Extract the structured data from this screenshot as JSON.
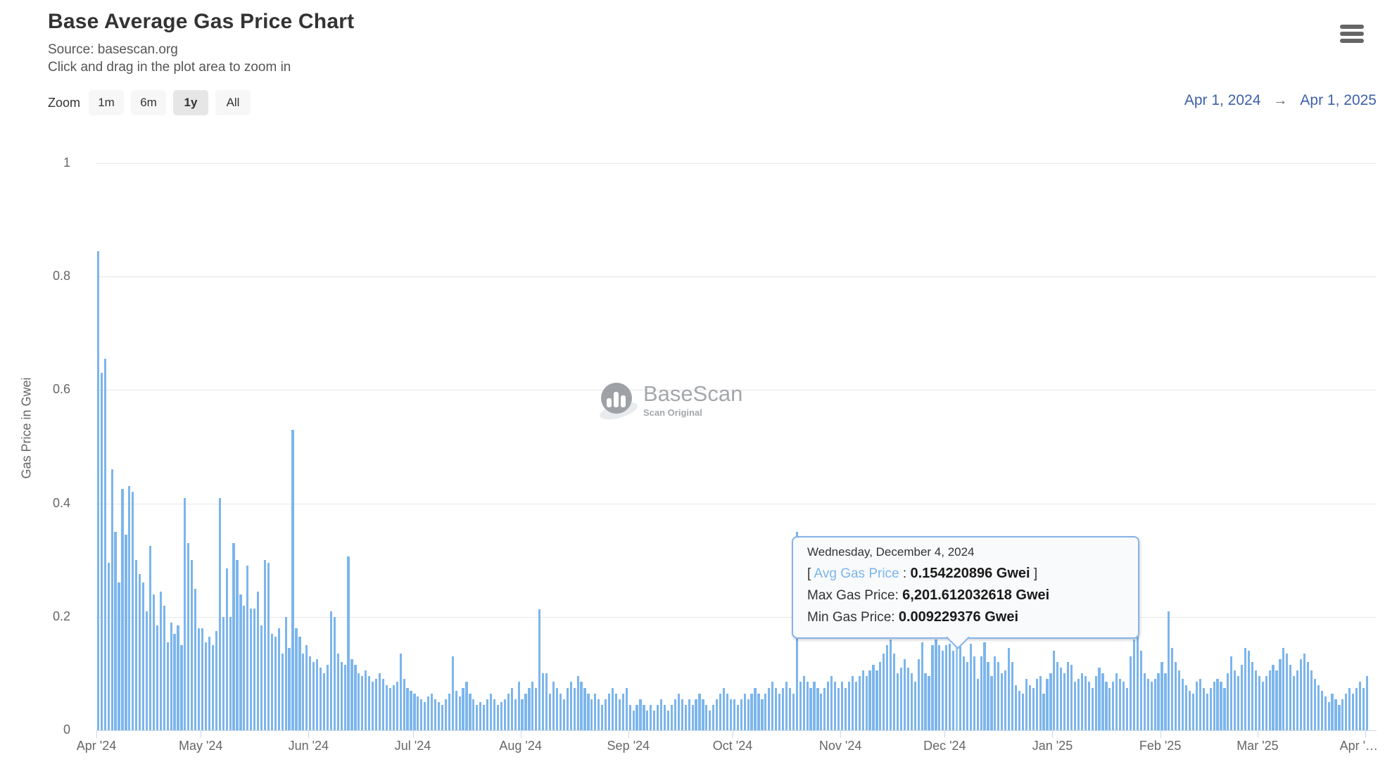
{
  "header": {
    "title": "Base Average Gas Price Chart",
    "source": "Source: basescan.org",
    "hint": "Click and drag in the plot area to zoom in"
  },
  "range_selector": {
    "zoom_label": "Zoom",
    "buttons": [
      {
        "label": "1m",
        "selected": false
      },
      {
        "label": "6m",
        "selected": false
      },
      {
        "label": "1y",
        "selected": true
      },
      {
        "label": "All",
        "selected": false
      }
    ],
    "from_date": "Apr 1, 2024",
    "arrow": "→",
    "to_date": "Apr 1, 2025"
  },
  "watermark": {
    "brand": "BaseScan",
    "tagline": "Scan Original"
  },
  "tooltip": {
    "date": "Wednesday, December 4, 2024",
    "bracket_open": "[ ",
    "avg_label": "Avg Gas Price",
    "separator": " : ",
    "avg_value": "0.154220896 Gwei",
    "bracket_close": " ]",
    "max_label": "Max Gas Price: ",
    "max_value": "6,201.612032618 Gwei",
    "min_label": "Min Gas Price: ",
    "min_value": "0.009229376 Gwei"
  },
  "chart_data": {
    "type": "bar",
    "title": "Base Average Gas Price Chart",
    "ylabel": "Gas Price in Gwei",
    "xlabel": "",
    "ylim": [
      0,
      1
    ],
    "yticks": [
      0,
      0.2,
      0.4,
      0.6,
      0.8,
      1
    ],
    "grid": true,
    "legend": false,
    "x_range": [
      "2024-04-01",
      "2025-04-01"
    ],
    "xticklabels": [
      "Apr '24",
      "May '24",
      "Jun '24",
      "Jul '24",
      "Aug '24",
      "Sep '24",
      "Oct '24",
      "Nov '24",
      "Dec '24",
      "Jan '25",
      "Feb '25",
      "Mar '25",
      "Apr '…"
    ],
    "month_tick_days": [
      0,
      30,
      61,
      91,
      122,
      153,
      183,
      214,
      244,
      275,
      306,
      334,
      365
    ],
    "series_name": "Avg Gas Price (Gwei)",
    "highlight": {
      "index": 247,
      "date": "2024-12-04",
      "avg_gwei": 0.154220896,
      "max_gwei": 6201.612032618,
      "min_gwei": 0.009229376
    },
    "values_by_month": [
      {
        "month": "Apr 2024",
        "values": [
          0.845,
          0.63,
          0.655,
          0.295,
          0.46,
          0.35,
          0.26,
          0.425,
          0.345,
          0.43,
          0.42,
          0.3,
          0.275,
          0.26,
          0.21,
          0.325,
          0.24,
          0.185,
          0.245,
          0.22,
          0.155,
          0.19,
          0.17,
          0.185,
          0.15,
          0.41,
          0.33,
          0.3,
          0.25,
          0.18
        ]
      },
      {
        "month": "May 2024",
        "values": [
          0.18,
          0.155,
          0.165,
          0.15,
          0.175,
          0.41,
          0.2,
          0.285,
          0.2,
          0.33,
          0.3,
          0.24,
          0.22,
          0.29,
          0.215,
          0.215,
          0.245,
          0.185,
          0.3,
          0.295,
          0.17,
          0.165,
          0.18,
          0.135,
          0.2,
          0.145,
          0.53,
          0.18,
          0.165,
          0.135,
          0.15
        ]
      },
      {
        "month": "Jun 2024",
        "values": [
          0.13,
          0.12,
          0.125,
          0.11,
          0.1,
          0.115,
          0.21,
          0.2,
          0.135,
          0.12,
          0.115,
          0.307,
          0.125,
          0.115,
          0.1,
          0.095,
          0.105,
          0.095,
          0.085,
          0.09,
          0.1,
          0.09,
          0.08,
          0.075,
          0.08,
          0.085,
          0.135,
          0.09,
          0.075,
          0.07
        ]
      },
      {
        "month": "Jul 2024",
        "values": [
          0.065,
          0.06,
          0.055,
          0.05,
          0.06,
          0.065,
          0.055,
          0.05,
          0.045,
          0.055,
          0.065,
          0.13,
          0.07,
          0.06,
          0.075,
          0.085,
          0.065,
          0.055,
          0.045,
          0.05,
          0.045,
          0.055,
          0.065,
          0.055,
          0.045,
          0.05,
          0.055,
          0.065,
          0.075,
          0.055,
          0.085
        ]
      },
      {
        "month": "Aug 2024",
        "values": [
          0.055,
          0.065,
          0.075,
          0.085,
          0.075,
          0.214,
          0.1,
          0.1,
          0.065,
          0.085,
          0.075,
          0.065,
          0.055,
          0.075,
          0.085,
          0.075,
          0.095,
          0.085,
          0.075,
          0.065,
          0.055,
          0.065,
          0.055,
          0.045,
          0.055,
          0.065,
          0.075,
          0.065,
          0.055,
          0.065,
          0.075
        ]
      },
      {
        "month": "Sep 2024",
        "values": [
          0.045,
          0.035,
          0.045,
          0.055,
          0.045,
          0.035,
          0.045,
          0.035,
          0.045,
          0.055,
          0.045,
          0.035,
          0.045,
          0.055,
          0.065,
          0.055,
          0.045,
          0.055,
          0.045,
          0.055,
          0.065,
          0.055,
          0.045,
          0.035,
          0.045,
          0.055,
          0.065,
          0.075,
          0.065,
          0.055
        ]
      },
      {
        "month": "Oct 2024",
        "values": [
          0.055,
          0.045,
          0.055,
          0.065,
          0.055,
          0.065,
          0.075,
          0.065,
          0.055,
          0.065,
          0.075,
          0.085,
          0.075,
          0.065,
          0.075,
          0.085,
          0.075,
          0.065,
          0.35,
          0.085,
          0.095,
          0.085,
          0.075,
          0.085,
          0.075,
          0.065,
          0.075,
          0.085,
          0.095,
          0.085,
          0.075
        ]
      },
      {
        "month": "Nov 2024",
        "values": [
          0.085,
          0.075,
          0.085,
          0.095,
          0.085,
          0.095,
          0.105,
          0.095,
          0.105,
          0.115,
          0.105,
          0.12,
          0.135,
          0.15,
          0.16,
          0.135,
          0.1,
          0.11,
          0.125,
          0.11,
          0.1,
          0.085,
          0.125,
          0.155,
          0.1,
          0.095,
          0.15,
          0.16,
          0.15,
          0.14
        ]
      },
      {
        "month": "Dec 2024",
        "values": [
          0.15,
          0.152,
          0.14,
          0.154220896,
          0.148,
          0.13,
          0.12,
          0.152,
          0.13,
          0.09,
          0.13,
          0.155,
          0.12,
          0.095,
          0.13,
          0.12,
          0.1,
          0.105,
          0.145,
          0.12,
          0.08,
          0.07,
          0.065,
          0.09,
          0.08,
          0.075,
          0.09,
          0.095,
          0.065,
          0.09,
          0.1
        ]
      },
      {
        "month": "Jan 2025",
        "values": [
          0.14,
          0.12,
          0.11,
          0.1,
          0.12,
          0.115,
          0.085,
          0.09,
          0.1,
          0.095,
          0.085,
          0.075,
          0.095,
          0.11,
          0.1,
          0.085,
          0.075,
          0.085,
          0.1,
          0.09,
          0.085,
          0.075,
          0.13,
          0.16,
          0.205,
          0.14,
          0.1,
          0.09,
          0.085,
          0.09,
          0.1
        ]
      },
      {
        "month": "Feb 2025",
        "values": [
          0.12,
          0.1,
          0.21,
          0.145,
          0.12,
          0.105,
          0.09,
          0.08,
          0.07,
          0.065,
          0.085,
          0.09,
          0.075,
          0.065,
          0.075,
          0.085,
          0.09,
          0.085,
          0.075,
          0.1,
          0.13,
          0.105,
          0.095,
          0.115,
          0.145,
          0.14,
          0.12,
          0.105
        ]
      },
      {
        "month": "Mar 2025",
        "values": [
          0.095,
          0.085,
          0.095,
          0.105,
          0.115,
          0.105,
          0.125,
          0.145,
          0.135,
          0.115,
          0.095,
          0.105,
          0.125,
          0.135,
          0.12,
          0.105,
          0.09,
          0.08,
          0.07,
          0.06,
          0.05,
          0.065,
          0.055,
          0.045,
          0.055,
          0.065,
          0.075,
          0.065,
          0.075,
          0.085,
          0.075
        ]
      },
      {
        "month": "Apr 2025",
        "values": [
          0.095
        ]
      }
    ]
  },
  "colors": {
    "bar": "#7cb5ec",
    "bar_hover": "#96c7f2",
    "grid": "#e6e6e6",
    "axis": "#ccd6eb",
    "tick_label": "#666666",
    "title": "#333333",
    "subtitle": "#555555",
    "range_text": "#3d61a8",
    "tooltip_border": "#85b3e8",
    "tooltip_bg": "#f9fafc",
    "avg_label": "#7cb5ec",
    "button_bg": "#f7f7f7",
    "button_selected_bg": "#e6e6e6"
  }
}
